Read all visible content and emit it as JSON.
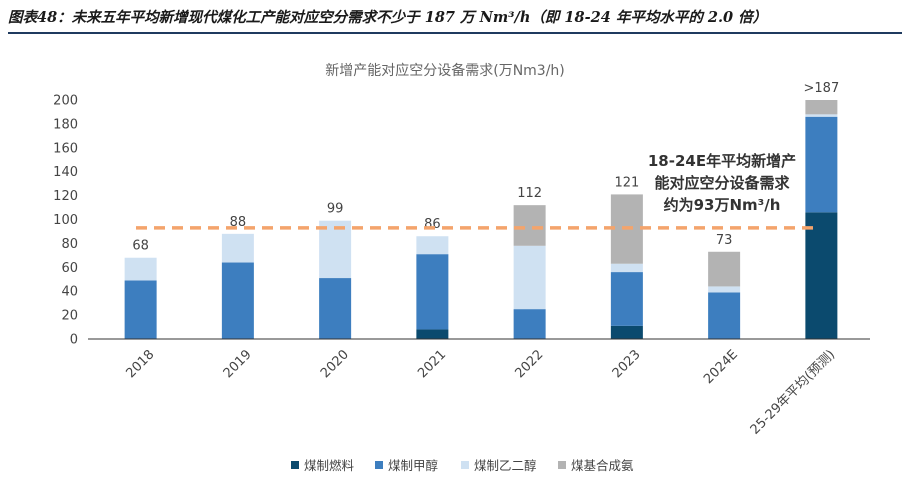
{
  "figure_title": "图表48：未来五年平均新增现代煤化工产能对应空分需求不少于 187 万 Nm³/h（即 18-24 年平均水平的 2.0 倍）",
  "colors": {
    "coal_fuel": "#0b4a6e",
    "methanol": "#3d7ebf",
    "glycol": "#cfe1f2",
    "syngas_ammonia": "#b3b3b3",
    "avg_line": "#f4a46c",
    "axis": "#333333",
    "title_rule": "#1f3a5f"
  },
  "chart_data": {
    "type": "bar",
    "stacked": true,
    "title": "新增产能对应空分设备需求(万Nm3/h)",
    "categories": [
      "2018",
      "2019",
      "2020",
      "2021",
      "2022",
      "2023",
      "2024E",
      "25-29年平均(预测)"
    ],
    "series": [
      {
        "name": "煤制燃料",
        "key": "coal_fuel",
        "values": [
          0,
          0,
          0,
          8,
          0,
          11,
          0,
          106
        ]
      },
      {
        "name": "煤制甲醇",
        "key": "methanol",
        "values": [
          49,
          64,
          51,
          63,
          25,
          45,
          39,
          80
        ]
      },
      {
        "name": "煤制乙二醇",
        "key": "glycol",
        "values": [
          19,
          24,
          48,
          15,
          53,
          7,
          5,
          2
        ]
      },
      {
        "name": "煤基合成氨",
        "key": "syngas_ammonia",
        "values": [
          0,
          0,
          0,
          0,
          34,
          58,
          29,
          12
        ]
      }
    ],
    "totals_labels": [
      "68",
      "88",
      "99",
      "86",
      "112",
      "121",
      "73",
      ">187"
    ],
    "ylim": [
      0,
      200
    ],
    "yticks": [
      0,
      20,
      40,
      60,
      80,
      100,
      120,
      140,
      160,
      180,
      200
    ],
    "reference_line": {
      "value": 93,
      "label_lines": [
        "18-24E年平均新增产",
        "能对应空分设备需求",
        "约为93万Nm³/h"
      ]
    },
    "legend_position": "bottom"
  }
}
